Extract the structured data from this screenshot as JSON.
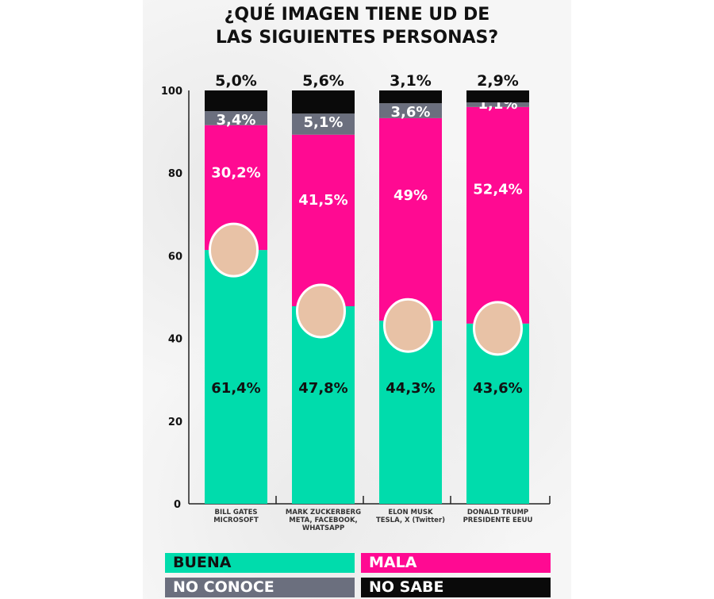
{
  "chart_data": {
    "type": "bar",
    "stacked": true,
    "title": "¿QUÉ IMAGEN TIENE UD DE LAS SIGUIENTES PERSONAS?",
    "categories": [
      [
        "BILL GATES",
        "MICROSOFT"
      ],
      [
        "MARK ZUCKERBERG",
        "META, FACEBOOK,",
        "WHATSAPP"
      ],
      [
        "ELON MUSK",
        "TESLA, X (Twitter)"
      ],
      [
        "DONALD TRUMP",
        "PRESIDENTE EEUU"
      ]
    ],
    "series": [
      {
        "name": "BUENA",
        "color": "#00dcac",
        "text_color": "#111111",
        "values": [
          61.4,
          47.8,
          44.3,
          43.6
        ],
        "labels": [
          "61,4%",
          "47,8%",
          "44,3%",
          "43,6%"
        ]
      },
      {
        "name": "MALA",
        "color": "#ff0a92",
        "text_color": "#ffffff",
        "values": [
          30.2,
          41.5,
          49,
          52.4
        ],
        "labels": [
          "30,2%",
          "41,5%",
          "49%",
          "52,4%"
        ]
      },
      {
        "name": "NO CONOCE",
        "color": "#6b6f7e",
        "text_color": "#ffffff",
        "values": [
          3.4,
          5.1,
          3.6,
          1.1
        ],
        "labels": [
          "3,4%",
          "5,1%",
          "3,6%",
          "1,1%"
        ]
      },
      {
        "name": "NO SABE",
        "color": "#0a0a0a",
        "text_color": "#ffffff",
        "values": [
          5.0,
          5.6,
          3.1,
          2.9
        ],
        "labels": [
          "5,0%",
          "5,6%",
          "3,1%",
          "2,9%"
        ]
      }
    ],
    "ylim": [
      0,
      100
    ],
    "yticks": [
      0,
      20,
      40,
      60,
      80,
      100
    ],
    "xlabel": "",
    "ylabel": "",
    "legend": "bottom"
  }
}
